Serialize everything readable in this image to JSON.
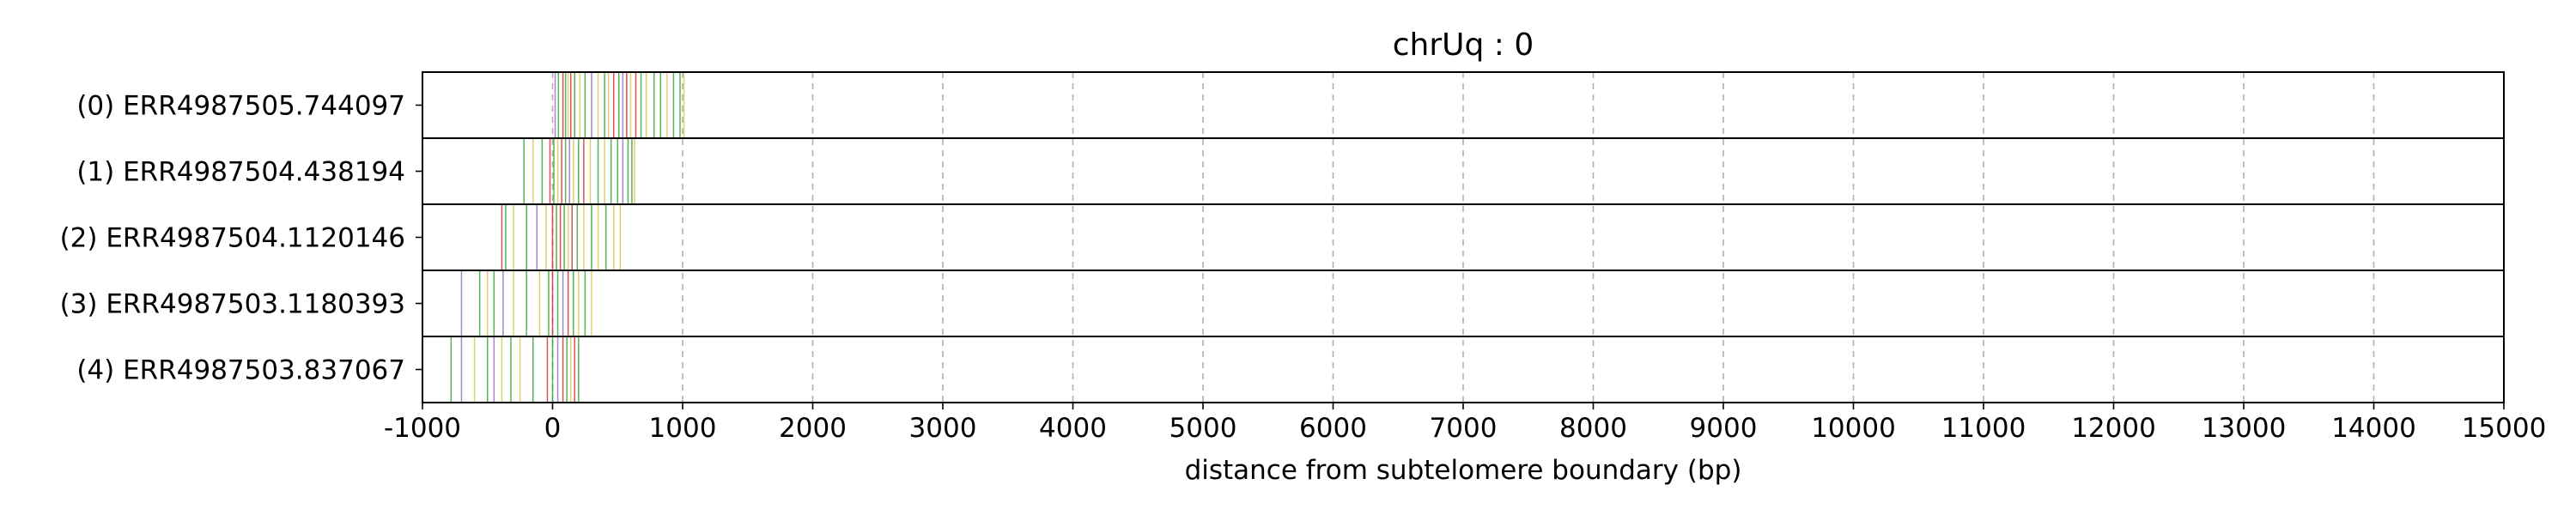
{
  "chart_data": {
    "type": "event_track",
    "title": "chrUq : 0",
    "xlabel": "distance from subtelomere boundary (bp)",
    "ylabel": "",
    "xlim": [
      -1000,
      15000
    ],
    "xticks": [
      -1000,
      0,
      1000,
      2000,
      3000,
      4000,
      5000,
      6000,
      7000,
      8000,
      9000,
      10000,
      11000,
      12000,
      13000,
      14000,
      15000
    ],
    "x_grid": true,
    "mark_colors": {
      "green": "#2ca02c",
      "red": "#d62728",
      "purple": "#9467bd",
      "yellow": "#d4c84a"
    },
    "rows": [
      {
        "label": "(0) ERR4987505.744097",
        "marks": [
          {
            "x": 20,
            "c": "purple"
          },
          {
            "x": 45,
            "c": "green"
          },
          {
            "x": 80,
            "c": "red"
          },
          {
            "x": 100,
            "c": "green"
          },
          {
            "x": 120,
            "c": "yellow"
          },
          {
            "x": 140,
            "c": "red"
          },
          {
            "x": 170,
            "c": "green"
          },
          {
            "x": 210,
            "c": "yellow"
          },
          {
            "x": 250,
            "c": "green"
          },
          {
            "x": 300,
            "c": "purple"
          },
          {
            "x": 350,
            "c": "yellow"
          },
          {
            "x": 400,
            "c": "green"
          },
          {
            "x": 430,
            "c": "yellow"
          },
          {
            "x": 470,
            "c": "red"
          },
          {
            "x": 510,
            "c": "green"
          },
          {
            "x": 540,
            "c": "purple"
          },
          {
            "x": 570,
            "c": "red"
          },
          {
            "x": 600,
            "c": "yellow"
          },
          {
            "x": 640,
            "c": "red"
          },
          {
            "x": 680,
            "c": "green"
          },
          {
            "x": 720,
            "c": "yellow"
          },
          {
            "x": 780,
            "c": "green"
          },
          {
            "x": 830,
            "c": "green"
          },
          {
            "x": 880,
            "c": "yellow"
          },
          {
            "x": 930,
            "c": "green"
          },
          {
            "x": 980,
            "c": "green"
          },
          {
            "x": 1010,
            "c": "yellow"
          }
        ]
      },
      {
        "label": "(1) ERR4987504.438194",
        "marks": [
          {
            "x": -220,
            "c": "green"
          },
          {
            "x": -150,
            "c": "yellow"
          },
          {
            "x": -80,
            "c": "green"
          },
          {
            "x": -20,
            "c": "red"
          },
          {
            "x": 10,
            "c": "green"
          },
          {
            "x": 40,
            "c": "yellow"
          },
          {
            "x": 70,
            "c": "red"
          },
          {
            "x": 100,
            "c": "green"
          },
          {
            "x": 130,
            "c": "purple"
          },
          {
            "x": 160,
            "c": "yellow"
          },
          {
            "x": 200,
            "c": "green"
          },
          {
            "x": 240,
            "c": "red"
          },
          {
            "x": 290,
            "c": "yellow"
          },
          {
            "x": 350,
            "c": "green"
          },
          {
            "x": 400,
            "c": "yellow"
          },
          {
            "x": 450,
            "c": "green"
          },
          {
            "x": 500,
            "c": "green"
          },
          {
            "x": 540,
            "c": "purple"
          },
          {
            "x": 580,
            "c": "green"
          },
          {
            "x": 610,
            "c": "green"
          },
          {
            "x": 630,
            "c": "yellow"
          }
        ]
      },
      {
        "label": "(2) ERR4987504.1120146",
        "marks": [
          {
            "x": -390,
            "c": "red"
          },
          {
            "x": -360,
            "c": "green"
          },
          {
            "x": -300,
            "c": "yellow"
          },
          {
            "x": -200,
            "c": "green"
          },
          {
            "x": -120,
            "c": "purple"
          },
          {
            "x": -50,
            "c": "yellow"
          },
          {
            "x": 0,
            "c": "red"
          },
          {
            "x": 30,
            "c": "green"
          },
          {
            "x": 60,
            "c": "red"
          },
          {
            "x": 90,
            "c": "green"
          },
          {
            "x": 120,
            "c": "yellow"
          },
          {
            "x": 150,
            "c": "red"
          },
          {
            "x": 190,
            "c": "green"
          },
          {
            "x": 240,
            "c": "yellow"
          },
          {
            "x": 300,
            "c": "green"
          },
          {
            "x": 350,
            "c": "yellow"
          },
          {
            "x": 410,
            "c": "green"
          },
          {
            "x": 470,
            "c": "yellow"
          },
          {
            "x": 520,
            "c": "yellow"
          }
        ]
      },
      {
        "label": "(3) ERR4987503.1180393",
        "marks": [
          {
            "x": -700,
            "c": "purple"
          },
          {
            "x": -560,
            "c": "green"
          },
          {
            "x": -500,
            "c": "yellow"
          },
          {
            "x": -450,
            "c": "green"
          },
          {
            "x": -380,
            "c": "purple"
          },
          {
            "x": -300,
            "c": "yellow"
          },
          {
            "x": -200,
            "c": "green"
          },
          {
            "x": -100,
            "c": "yellow"
          },
          {
            "x": -30,
            "c": "green"
          },
          {
            "x": 0,
            "c": "red"
          },
          {
            "x": 40,
            "c": "green"
          },
          {
            "x": 80,
            "c": "purple"
          },
          {
            "x": 120,
            "c": "red"
          },
          {
            "x": 160,
            "c": "green"
          },
          {
            "x": 200,
            "c": "yellow"
          },
          {
            "x": 250,
            "c": "green"
          },
          {
            "x": 300,
            "c": "yellow"
          }
        ]
      },
      {
        "label": "(4) ERR4987503.837067",
        "marks": [
          {
            "x": -780,
            "c": "green"
          },
          {
            "x": -700,
            "c": "purple"
          },
          {
            "x": -600,
            "c": "yellow"
          },
          {
            "x": -500,
            "c": "green"
          },
          {
            "x": -450,
            "c": "purple"
          },
          {
            "x": -390,
            "c": "yellow"
          },
          {
            "x": -320,
            "c": "green"
          },
          {
            "x": -250,
            "c": "yellow"
          },
          {
            "x": -150,
            "c": "green"
          },
          {
            "x": -40,
            "c": "red"
          },
          {
            "x": 0,
            "c": "green"
          },
          {
            "x": 40,
            "c": "purple"
          },
          {
            "x": 80,
            "c": "red"
          },
          {
            "x": 110,
            "c": "green"
          },
          {
            "x": 140,
            "c": "yellow"
          },
          {
            "x": 170,
            "c": "red"
          },
          {
            "x": 200,
            "c": "green"
          }
        ]
      }
    ]
  }
}
